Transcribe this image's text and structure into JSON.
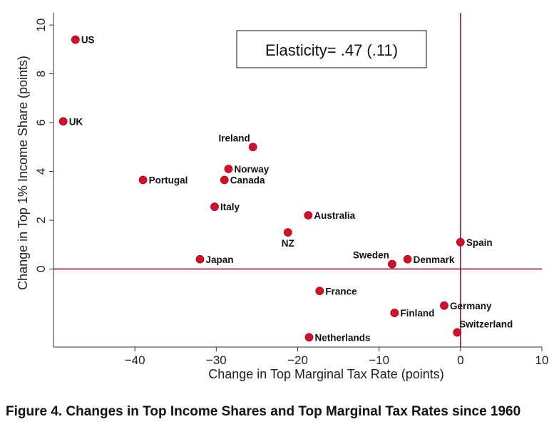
{
  "caption": "Figure 4. Changes in Top Income Shares and Top Marginal Tax Rates since 1960",
  "chart_data": {
    "type": "scatter",
    "xlabel": "Change in Top Marginal Tax Rate (points)",
    "ylabel": "Change in Top 1% Income Share (points)",
    "xlim": [
      -50,
      10
    ],
    "ylim": [
      -3.2,
      10.5
    ],
    "x_ticks": [
      -40,
      -30,
      -20,
      -10,
      0,
      10
    ],
    "x_tick_labels": [
      "−40",
      "−30",
      "−20",
      "−10",
      "0",
      "10"
    ],
    "y_ticks": [
      0,
      2,
      4,
      6,
      8,
      10
    ],
    "y_tick_labels": [
      "0",
      "2",
      "4",
      "6",
      "8",
      "10"
    ],
    "annotation": "Elasticity= .47 (.11)",
    "reference_lines": {
      "x": 0,
      "y": 0,
      "color": "#8b1a3a"
    },
    "marker_color": "#d3102a",
    "grid": false,
    "points": [
      {
        "label": "US",
        "x": -47.3,
        "y": 9.4,
        "label_pos": "right"
      },
      {
        "label": "UK",
        "x": -48.8,
        "y": 6.05,
        "label_pos": "right"
      },
      {
        "label": "Ireland",
        "x": -25.5,
        "y": 5.0,
        "label_pos": "above-left"
      },
      {
        "label": "Norway",
        "x": -28.5,
        "y": 4.1,
        "label_pos": "right"
      },
      {
        "label": "Portugal",
        "x": -39.0,
        "y": 3.65,
        "label_pos": "right"
      },
      {
        "label": "Canada",
        "x": -29.0,
        "y": 3.65,
        "label_pos": "right"
      },
      {
        "label": "Italy",
        "x": -30.2,
        "y": 2.55,
        "label_pos": "right"
      },
      {
        "label": "Australia",
        "x": -18.7,
        "y": 2.2,
        "label_pos": "right"
      },
      {
        "label": "NZ",
        "x": -21.2,
        "y": 1.5,
        "label_pos": "below"
      },
      {
        "label": "Spain",
        "x": 0.0,
        "y": 1.1,
        "label_pos": "right"
      },
      {
        "label": "Japan",
        "x": -32.0,
        "y": 0.4,
        "label_pos": "right"
      },
      {
        "label": "Sweden",
        "x": -8.4,
        "y": 0.2,
        "label_pos": "above-left"
      },
      {
        "label": "Denmark",
        "x": -6.5,
        "y": 0.4,
        "label_pos": "right"
      },
      {
        "label": "France",
        "x": -17.3,
        "y": -0.9,
        "label_pos": "right"
      },
      {
        "label": "Germany",
        "x": -2.0,
        "y": -1.5,
        "label_pos": "right"
      },
      {
        "label": "Finland",
        "x": -8.1,
        "y": -1.8,
        "label_pos": "right"
      },
      {
        "label": "Switzerland",
        "x": -0.4,
        "y": -2.6,
        "label_pos": "above-right"
      },
      {
        "label": "Netherlands",
        "x": -18.6,
        "y": -2.8,
        "label_pos": "right"
      }
    ]
  }
}
